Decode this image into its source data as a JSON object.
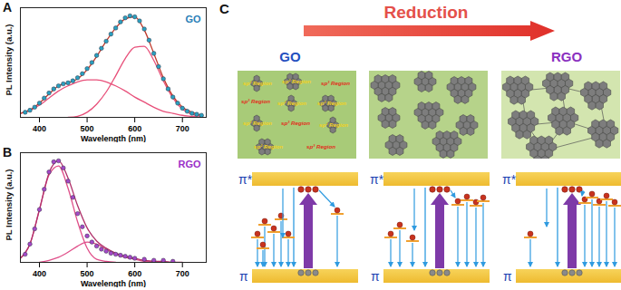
{
  "chart_data": [
    {
      "type": "line",
      "title": "GO",
      "annotations": [
        "A"
      ],
      "x_label": "Wavelength (nm)",
      "y_label": "PL Intensity (a.u.)",
      "xlim": [
        360,
        750
      ],
      "xticks": [
        400,
        500,
        600,
        700
      ],
      "ylim": [
        0,
        1.08
      ],
      "tick_labels": "x",
      "series": [
        {
          "type": "line",
          "color": "#e8507a",
          "x": [
            360,
            380,
            400,
            420,
            440,
            460,
            480,
            500,
            520,
            540,
            560,
            580,
            600,
            620,
            640,
            660,
            680,
            700,
            720,
            740
          ],
          "values": [
            0.04,
            0.07,
            0.12,
            0.19,
            0.26,
            0.31,
            0.35,
            0.37,
            0.37,
            0.35,
            0.31,
            0.26,
            0.2,
            0.15,
            0.1,
            0.06,
            0.04,
            0.02,
            0.01,
            0.0
          ]
        },
        {
          "type": "line",
          "color": "#e8507a",
          "x": [
            460,
            480,
            500,
            520,
            540,
            560,
            580,
            600,
            620,
            640,
            660,
            680,
            700,
            720,
            740
          ],
          "values": [
            0.0,
            0.01,
            0.05,
            0.13,
            0.25,
            0.41,
            0.58,
            0.69,
            0.7,
            0.56,
            0.36,
            0.19,
            0.08,
            0.03,
            0.01
          ]
        },
        {
          "type": "line",
          "color": "#c0392b",
          "x": [
            360,
            380,
            400,
            420,
            440,
            460,
            480,
            500,
            520,
            540,
            560,
            580,
            600,
            620,
            640,
            660,
            680,
            700,
            720,
            740
          ],
          "values": [
            0.04,
            0.07,
            0.14,
            0.23,
            0.31,
            0.34,
            0.38,
            0.47,
            0.6,
            0.75,
            0.88,
            0.97,
            0.99,
            0.86,
            0.63,
            0.39,
            0.21,
            0.1,
            0.05,
            0.02
          ]
        },
        {
          "type": "scatter",
          "marker": "circle",
          "color": "#2aa0c0",
          "x": [
            370,
            380,
            390,
            400,
            410,
            420,
            430,
            440,
            450,
            460,
            470,
            480,
            490,
            500,
            510,
            520,
            530,
            540,
            550,
            560,
            570,
            580,
            590,
            600,
            610,
            620,
            630,
            640,
            650,
            660,
            670,
            680,
            690,
            700,
            710,
            720,
            730,
            740
          ],
          "values": [
            0.05,
            0.07,
            0.1,
            0.14,
            0.19,
            0.24,
            0.28,
            0.31,
            0.33,
            0.34,
            0.36,
            0.39,
            0.43,
            0.48,
            0.54,
            0.61,
            0.68,
            0.75,
            0.82,
            0.88,
            0.94,
            0.98,
            1.0,
            0.99,
            0.95,
            0.87,
            0.76,
            0.63,
            0.5,
            0.38,
            0.28,
            0.2,
            0.14,
            0.09,
            0.06,
            0.04,
            0.03,
            0.02
          ]
        }
      ]
    },
    {
      "type": "line",
      "title": "RGO",
      "annotations": [
        "B"
      ],
      "x_label": "Wavelength (nm)",
      "y_label": "PL Intensity (a.u.)",
      "xlim": [
        360,
        750
      ],
      "xticks": [
        400,
        500,
        600,
        700
      ],
      "ylim": [
        0,
        1.08
      ],
      "tick_labels": "x",
      "series": [
        {
          "type": "line",
          "color": "#e0508a",
          "x": [
            360,
            380,
            400,
            420,
            440,
            460,
            480,
            500,
            520,
            540,
            560
          ],
          "values": [
            0.04,
            0.18,
            0.52,
            0.86,
            0.95,
            0.73,
            0.4,
            0.14,
            0.03,
            0.01,
            0.0
          ]
        },
        {
          "type": "line",
          "color": "#e0508a",
          "x": [
            400,
            420,
            440,
            460,
            480,
            500,
            520,
            540,
            560,
            580,
            600,
            620,
            640
          ],
          "values": [
            0.0,
            0.02,
            0.05,
            0.1,
            0.16,
            0.2,
            0.18,
            0.13,
            0.08,
            0.05,
            0.03,
            0.01,
            0.0
          ]
        },
        {
          "type": "line",
          "color": "#b0306a",
          "x": [
            360,
            380,
            400,
            420,
            440,
            460,
            480,
            500,
            520,
            540,
            560,
            580,
            600,
            620,
            640,
            660,
            680,
            700
          ],
          "values": [
            0.04,
            0.18,
            0.52,
            0.88,
            1.0,
            0.83,
            0.56,
            0.34,
            0.21,
            0.14,
            0.09,
            0.06,
            0.04,
            0.02,
            0.01,
            0.01,
            0.0,
            0.0
          ]
        },
        {
          "type": "scatter",
          "marker": "circle",
          "color": "#a448c8",
          "x": [
            370,
            380,
            390,
            400,
            410,
            420,
            430,
            440,
            450,
            460,
            470,
            480,
            490,
            500,
            510,
            520,
            530,
            540,
            550,
            560,
            570,
            580,
            590,
            600,
            620,
            640,
            660,
            680
          ],
          "values": [
            0.08,
            0.18,
            0.33,
            0.52,
            0.72,
            0.89,
            0.99,
            1.0,
            0.93,
            0.8,
            0.64,
            0.48,
            0.35,
            0.26,
            0.2,
            0.16,
            0.13,
            0.11,
            0.09,
            0.08,
            0.07,
            0.06,
            0.05,
            0.04,
            0.03,
            0.02,
            0.02,
            0.01
          ]
        }
      ]
    }
  ],
  "diagram": {
    "panel_label": "C",
    "arrow_label": "Reduction",
    "start_label": "GO",
    "end_label": "RGO",
    "band_labels": [
      "π*",
      "π"
    ],
    "region_labels": [
      "sp² Region",
      "sp² Region",
      "sp³ Region",
      "sp³ Region",
      "sp² Region",
      "sp² Region",
      "sp² Region",
      "sp³ Region",
      "sp² Region",
      "sp² Region",
      "sp³ Region"
    ]
  }
}
